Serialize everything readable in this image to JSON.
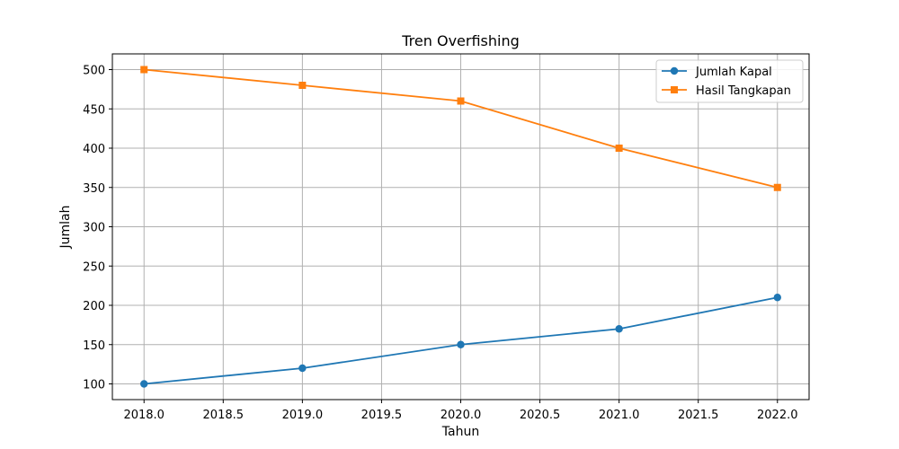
{
  "chart_data": {
    "type": "line",
    "title": "Tren Overfishing",
    "xlabel": "Tahun",
    "ylabel": "Jumlah",
    "x": [
      2018,
      2019,
      2020,
      2021,
      2022
    ],
    "xlim": [
      2017.8,
      2022.2
    ],
    "ylim": [
      80,
      520
    ],
    "xticks": [
      2018.0,
      2018.5,
      2019.0,
      2019.5,
      2020.0,
      2020.5,
      2021.0,
      2021.5,
      2022.0
    ],
    "xtick_labels": [
      "2018.0",
      "2018.5",
      "2019.0",
      "2019.5",
      "2020.0",
      "2020.5",
      "2021.0",
      "2021.5",
      "2022.0"
    ],
    "yticks": [
      100,
      150,
      200,
      250,
      300,
      350,
      400,
      450,
      500
    ],
    "ytick_labels": [
      "100",
      "150",
      "200",
      "250",
      "300",
      "350",
      "400",
      "450",
      "500"
    ],
    "grid": true,
    "legend_position": "top-right",
    "series": [
      {
        "name": "Jumlah Kapal",
        "values": [
          100,
          120,
          150,
          170,
          210
        ],
        "color": "#1f77b4",
        "marker": "circle"
      },
      {
        "name": "Hasil Tangkapan",
        "values": [
          500,
          480,
          460,
          400,
          350
        ],
        "color": "#ff7f0e",
        "marker": "square"
      }
    ]
  }
}
